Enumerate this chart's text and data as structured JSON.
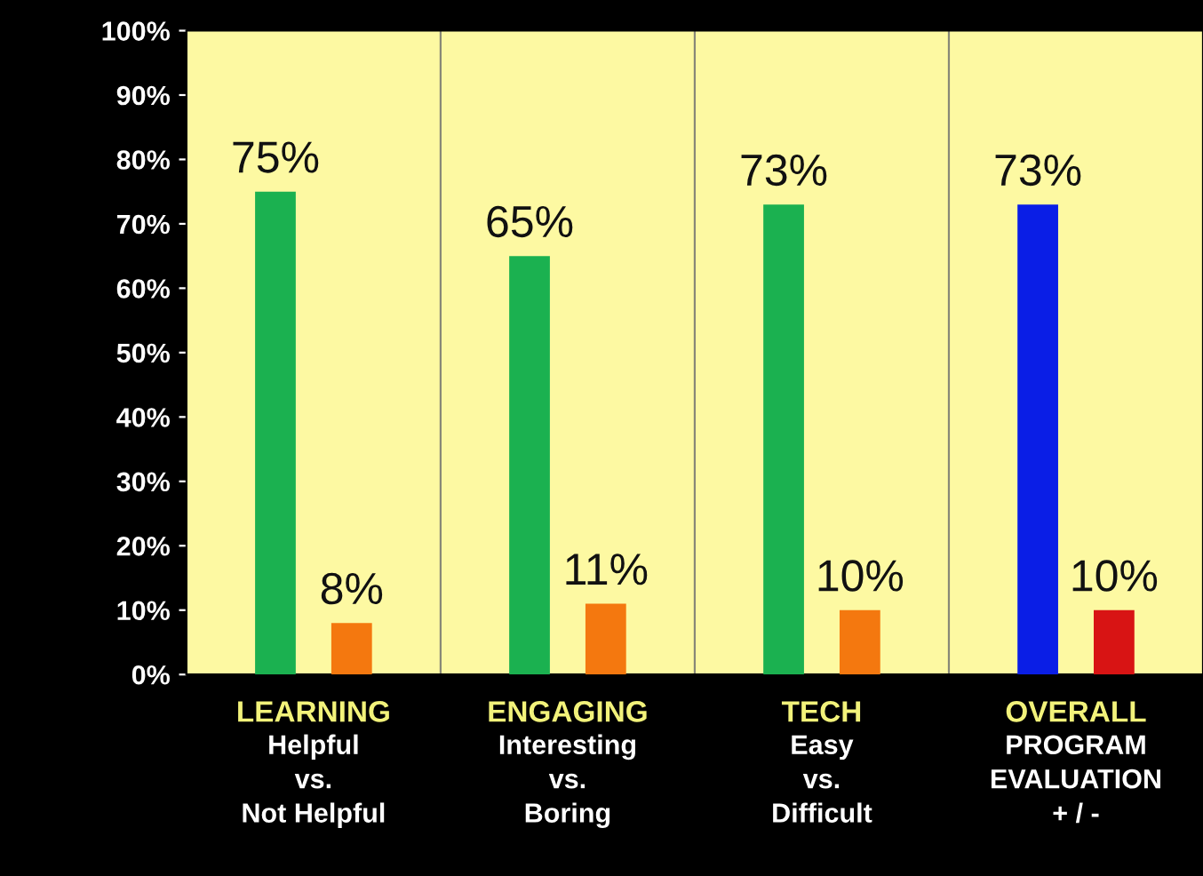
{
  "chart_data": {
    "type": "bar",
    "categories": [
      "LEARNING\nHelpful\nvs.\nNot Helpful",
      "ENGAGING\nInteresting\nvs.\nBoring",
      "TECH\nEasy\nvs.\nDifficult",
      "OVERALL\nPROGRAM\nEVALUATION\n+ / -"
    ],
    "series": [
      {
        "colors": [
          "#1bb150",
          "#1bb150",
          "#1bb150",
          "#0a1ee6"
        ],
        "values": [
          75,
          65,
          73,
          73
        ]
      },
      {
        "colors": [
          "#f4780f",
          "#f4780f",
          "#f4780f",
          "#d81414"
        ],
        "values": [
          8,
          11,
          10,
          10
        ]
      }
    ],
    "ylim": [
      0,
      100
    ],
    "yticks": [
      {
        "value": 0,
        "label": "0%"
      },
      {
        "value": 10,
        "label": "10%"
      },
      {
        "value": 20,
        "label": "20%"
      },
      {
        "value": 30,
        "label": "30%"
      },
      {
        "value": 40,
        "label": "40%"
      },
      {
        "value": 50,
        "label": "50%"
      },
      {
        "value": 60,
        "label": "60%"
      },
      {
        "value": 70,
        "label": "70%"
      },
      {
        "value": 80,
        "label": "80%"
      },
      {
        "value": 90,
        "label": "90%"
      },
      {
        "value": 100,
        "label": "100%"
      }
    ],
    "value_labels": [
      [
        "75%",
        "65%",
        "73%",
        "73%"
      ],
      [
        "8%",
        "11%",
        "10%",
        "10%"
      ]
    ],
    "grid": false
  }
}
